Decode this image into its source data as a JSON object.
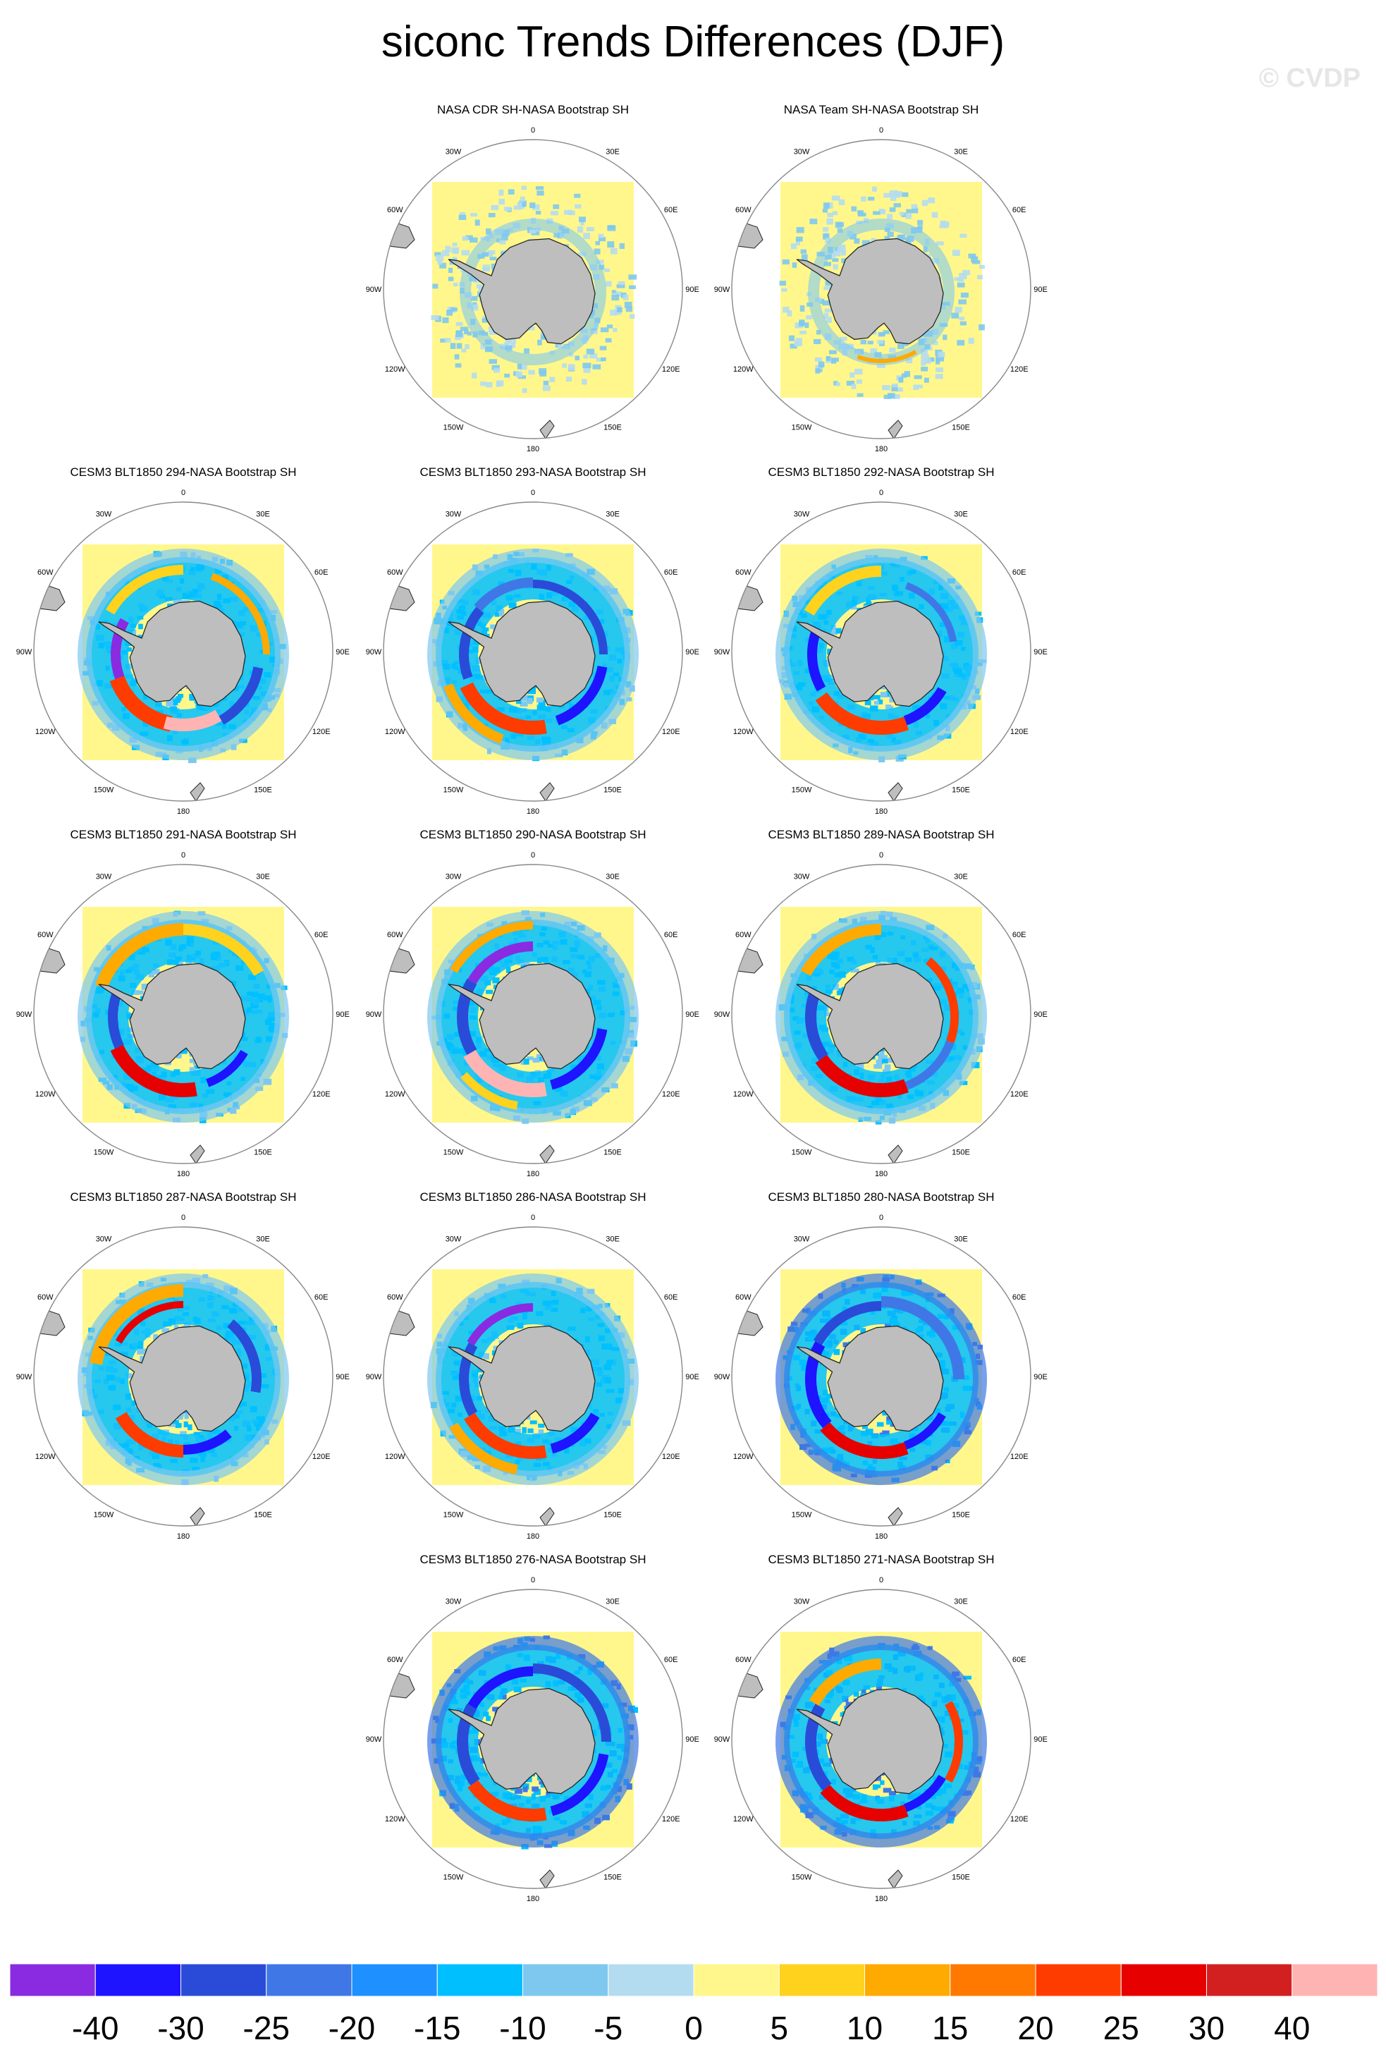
{
  "title": "siconc Trends Differences (DJF)",
  "watermark": "© CVDP",
  "lon_labels": [
    "0",
    "30E",
    "60E",
    "90E",
    "120E",
    "150E",
    "180",
    "150W",
    "120W",
    "90W",
    "60W",
    "30W"
  ],
  "panels": [
    {
      "title": "NASA CDR SH-NASA Bootstrap SH",
      "pattern": "obs1"
    },
    {
      "title": "NASA Team SH-NASA Bootstrap SH",
      "pattern": "obs2"
    },
    {
      "title": "CESM3 BLT1850 294-NASA Bootstrap SH",
      "pattern": "m294"
    },
    {
      "title": "CESM3 BLT1850 293-NASA Bootstrap SH",
      "pattern": "m293"
    },
    {
      "title": "CESM3 BLT1850 292-NASA Bootstrap SH",
      "pattern": "m292"
    },
    {
      "title": "CESM3 BLT1850 291-NASA Bootstrap SH",
      "pattern": "m291"
    },
    {
      "title": "CESM3 BLT1850 290-NASA Bootstrap SH",
      "pattern": "m290"
    },
    {
      "title": "CESM3 BLT1850 289-NASA Bootstrap SH",
      "pattern": "m289"
    },
    {
      "title": "CESM3 BLT1850 287-NASA Bootstrap SH",
      "pattern": "m287"
    },
    {
      "title": "CESM3 BLT1850 286-NASA Bootstrap SH",
      "pattern": "m286"
    },
    {
      "title": "CESM3 BLT1850 280-NASA Bootstrap SH",
      "pattern": "m280"
    },
    {
      "title": "CESM3 BLT1850 276-NASA Bootstrap SH",
      "pattern": "m276"
    },
    {
      "title": "CESM3 BLT1850 271-NASA Bootstrap SH",
      "pattern": "m271"
    }
  ],
  "colorbar": {
    "labels": [
      "-40",
      "-30",
      "-25",
      "-20",
      "-15",
      "-10",
      "-5",
      "0",
      "5",
      "10",
      "15",
      "20",
      "25",
      "30",
      "40"
    ],
    "colors": [
      "#8a2be2",
      "#1e14ff",
      "#2a4bd7",
      "#3f78e6",
      "#1e90ff",
      "#00bfff",
      "#7ec8f0",
      "#b4dcf0",
      "#fff78c",
      "#ffd21e",
      "#ffaa00",
      "#ff7800",
      "#ff3c00",
      "#e60000",
      "#d22020",
      "#ffb4b4"
    ]
  },
  "land_color": "#bebebe",
  "ocean_color": "#fff78c"
}
